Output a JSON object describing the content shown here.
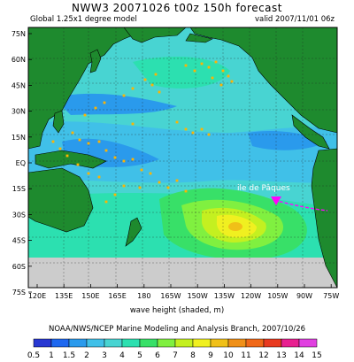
{
  "header": {
    "title": "NWW3 20071026 t00z 150h forecast",
    "model": "Global 1.25x1 degree model",
    "valid": "valid 2007/11/01 06z"
  },
  "map": {
    "lat_ticks": [
      "75N",
      "60N",
      "45N",
      "30N",
      "15N",
      "EQ",
      "15S",
      "30S",
      "45S",
      "60S",
      "75S"
    ],
    "lon_ticks": [
      "120E",
      "135E",
      "150E",
      "165E",
      "180",
      "165W",
      "150W",
      "135W",
      "120W",
      "105W",
      "90W",
      "75W"
    ],
    "annotation": "ile de Pâques",
    "colors": {
      "land": "#1e8a2e",
      "coast": "#000000",
      "ice": "#cccccc",
      "track": "#ff00ff",
      "buoy": "#ffb400"
    }
  },
  "footer": {
    "xlabel": "wave height (shaded, m)",
    "credit": "NOAA/NWS/NCEP Marine Modeling and Analysis Branch, 2007/10/26"
  },
  "legend": {
    "labels": [
      "0.5",
      "1",
      "1.5",
      "2",
      "3",
      "4",
      "5",
      "6",
      "7",
      "8",
      "9",
      "10",
      "11",
      "12",
      "13",
      "14",
      "15"
    ],
    "colors": [
      "#2838d2",
      "#1e68f0",
      "#2a9aec",
      "#40c0e8",
      "#48d4d2",
      "#2ce0b0",
      "#38e068",
      "#80f040",
      "#c4f020",
      "#f0f020",
      "#f0c018",
      "#f09018",
      "#f06818",
      "#e83a20",
      "#e82090",
      "#e040e0"
    ]
  }
}
